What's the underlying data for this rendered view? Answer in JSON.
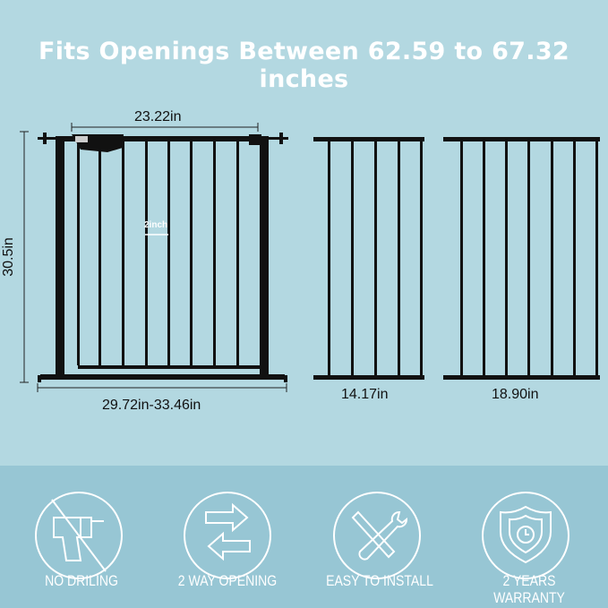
{
  "headline": "Fits Openings Between 62.59 to 67.32 inches",
  "dimensions": {
    "gate_width": "23.22in",
    "gate_height": "30.5in",
    "bar_spacing": "2inch",
    "gate_range": "29.72in-33.46in",
    "extension_small": "14.17in",
    "extension_large": "18.90in"
  },
  "features": [
    {
      "label": "NO DRILING",
      "icon": "no-drill-icon"
    },
    {
      "label": "2 WAY OPENING",
      "icon": "two-way-arrows-icon"
    },
    {
      "label": "EASY TO INSTALL",
      "icon": "tools-icon"
    },
    {
      "label": "2 YEARS WARRANTY",
      "icon": "shield-clock-icon"
    }
  ],
  "colors": {
    "background": "#b3d8e1",
    "band": "#97c6d4",
    "gate": "#111111"
  }
}
